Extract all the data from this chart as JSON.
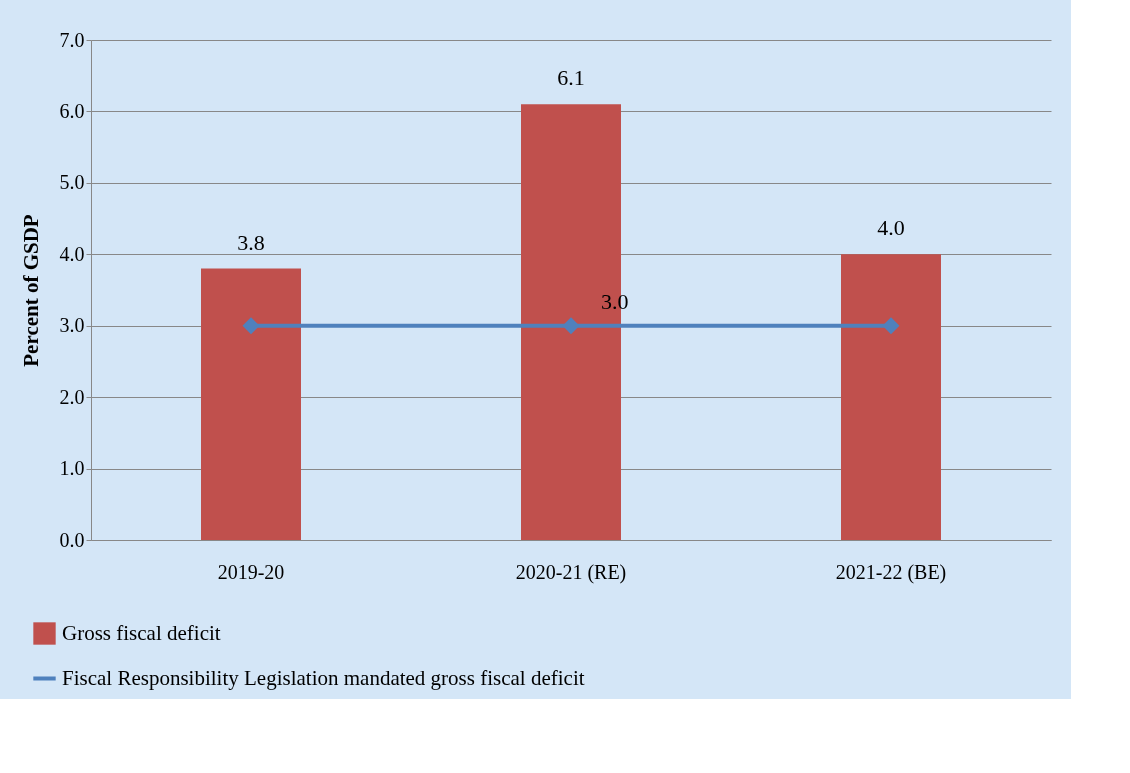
{
  "chart_data": {
    "type": "bar",
    "ylabel": "Percent of GSDP",
    "categories": [
      "2019-20",
      "2020-21 (RE)",
      "2021-22 (BE)"
    ],
    "series": [
      {
        "name": "Gross fiscal deficit",
        "color": "#c0504d",
        "values": [
          3.8,
          6.1,
          4.0
        ],
        "value_labels": [
          "3.8",
          "6.1",
          "4.0"
        ]
      },
      {
        "name": "Fiscal Responsibility Legislation mandated gross fiscal deficit",
        "type": "line",
        "color": "#4f81bd",
        "values": [
          3.0,
          3.0,
          3.0
        ],
        "value_labels": [
          null,
          "3.0",
          null
        ],
        "marker": "diamond"
      }
    ],
    "ylim": [
      0,
      7
    ],
    "yticks": [
      {
        "value": 0,
        "label": "0.0"
      },
      {
        "value": 1,
        "label": "1.0"
      },
      {
        "value": 2,
        "label": "2.0"
      },
      {
        "value": 3,
        "label": "3.0"
      },
      {
        "value": 4,
        "label": "4.0"
      },
      {
        "value": 5,
        "label": "5.0"
      },
      {
        "value": 6,
        "label": "6.0"
      },
      {
        "value": 7,
        "label": "7.0"
      }
    ],
    "grid": "y",
    "legend": "bottom"
  }
}
